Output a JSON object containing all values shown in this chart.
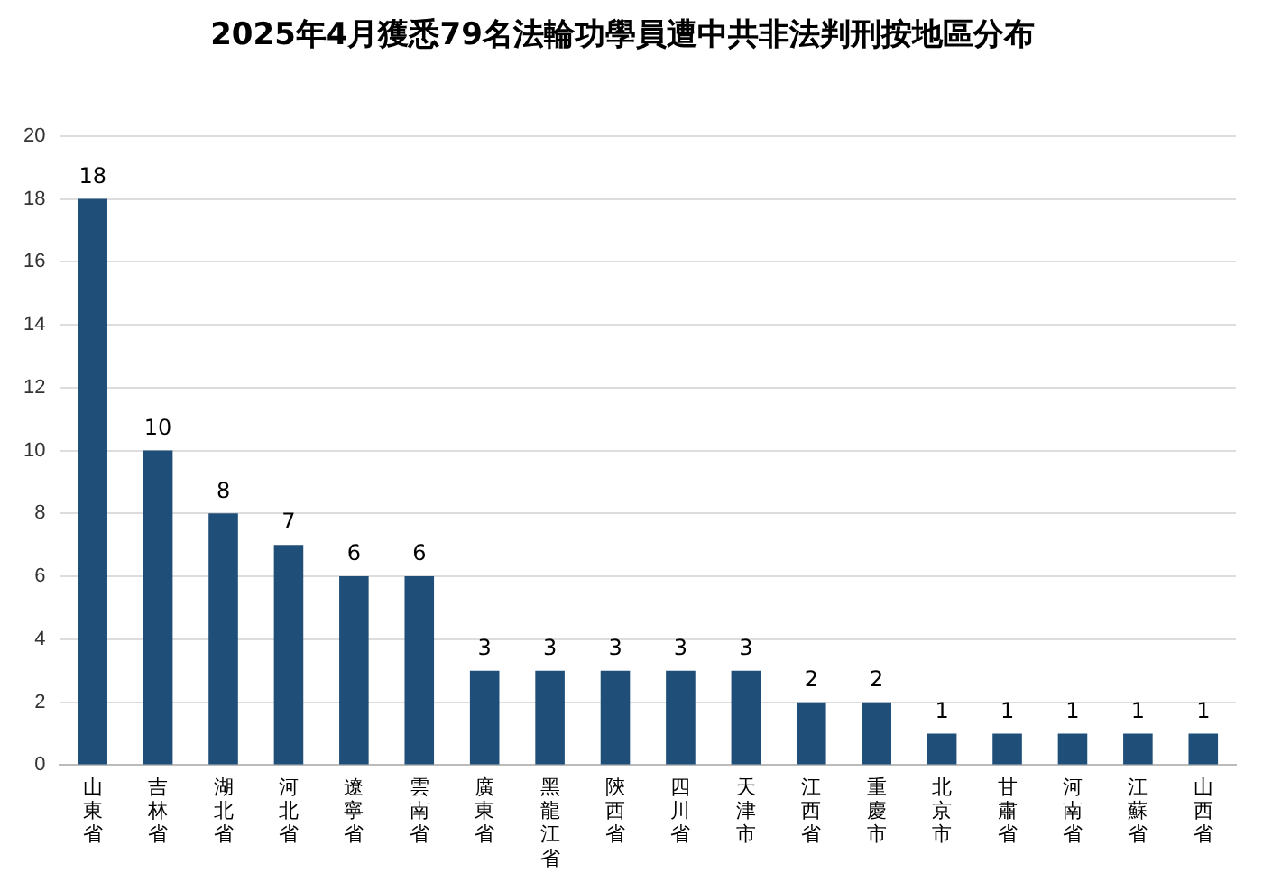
{
  "chart_data": {
    "type": "bar",
    "title": "2025年4月獲悉79名法輪功學員遭中共非法判刑按地區分布",
    "categories": [
      "山東省",
      "吉林省",
      "湖北省",
      "河北省",
      "遼寧省",
      "雲南省",
      "廣東省",
      "黑龍江省",
      "陝西省",
      "四川省",
      "天津市",
      "江西省",
      "重慶市",
      "北京市",
      "甘肅省",
      "河南省",
      "江蘇省",
      "山西省"
    ],
    "values": [
      18,
      10,
      8,
      7,
      6,
      6,
      3,
      3,
      3,
      3,
      3,
      2,
      2,
      1,
      1,
      1,
      1,
      1
    ],
    "color": "#1f4e79",
    "ylim": [
      0,
      20
    ],
    "yticks": [
      0,
      2,
      4,
      6,
      8,
      10,
      12,
      14,
      16,
      18,
      20
    ],
    "grid": "y",
    "data_labels": true
  }
}
